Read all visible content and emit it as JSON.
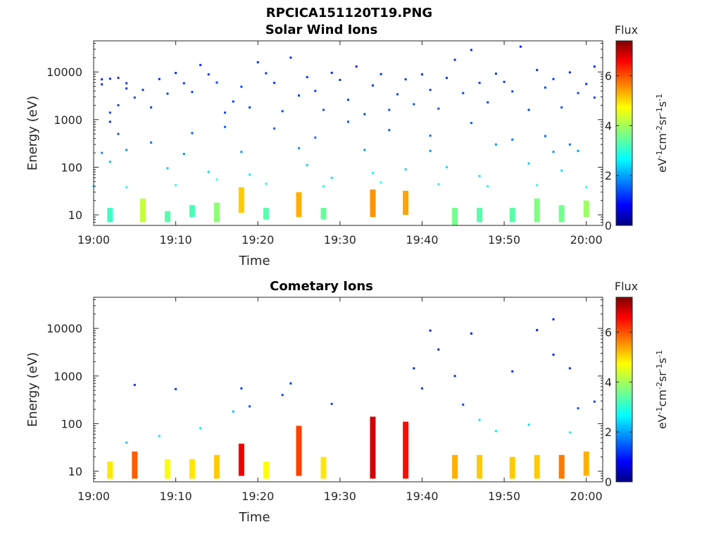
{
  "figure_title": "RPCICA151120T19.PNG",
  "chart_data": [
    {
      "type": "heatmap",
      "title": "Solar Wind Ions",
      "xlabel": "Time",
      "ylabel": "Energy (eV)",
      "y_scale": "log",
      "x_range": [
        "19:00",
        "20:02"
      ],
      "y_range": [
        6,
        45000
      ],
      "x_ticks": [
        "19:00",
        "19:10",
        "19:20",
        "19:30",
        "19:40",
        "19:50",
        "20:00"
      ],
      "y_ticks": [
        "10",
        "100",
        "1000",
        "10000"
      ],
      "colorbar": {
        "label": "Flux",
        "unit": "eV-1cm-2sr-1s-1",
        "range": [
          0,
          7.4
        ],
        "ticks": [
          "0",
          "2",
          "4",
          "6"
        ],
        "colormap": "jet"
      },
      "grid": false,
      "points": [
        {
          "t": "19:01",
          "e": 7000,
          "v": 1.2
        },
        {
          "t": "19:01",
          "e": 5500,
          "v": 1.3
        },
        {
          "t": "19:02",
          "e": 7200,
          "v": 1.2
        },
        {
          "t": "19:02",
          "e": 1400,
          "v": 1.4
        },
        {
          "t": "19:02",
          "e": 900,
          "v": 1.3
        },
        {
          "t": "19:03",
          "e": 7500,
          "v": 1.2
        },
        {
          "t": "19:03",
          "e": 2000,
          "v": 1.4
        },
        {
          "t": "19:04",
          "e": 5800,
          "v": 1.3
        },
        {
          "t": "19:04",
          "e": 4500,
          "v": 1.4
        },
        {
          "t": "19:05",
          "e": 2900,
          "v": 1.5
        },
        {
          "t": "19:06",
          "e": 4200,
          "v": 1.3
        },
        {
          "t": "19:07",
          "e": 1800,
          "v": 1.4
        },
        {
          "t": "19:08",
          "e": 7100,
          "v": 1.2
        },
        {
          "t": "19:09",
          "e": 3500,
          "v": 1.4
        },
        {
          "t": "19:10",
          "e": 9500,
          "v": 1.2
        },
        {
          "t": "19:11",
          "e": 5800,
          "v": 1.3
        },
        {
          "t": "19:12",
          "e": 3800,
          "v": 1.4
        },
        {
          "t": "19:13",
          "e": 14000,
          "v": 1.2
        },
        {
          "t": "19:14",
          "e": 8900,
          "v": 1.3
        },
        {
          "t": "19:15",
          "e": 6000,
          "v": 1.4
        },
        {
          "t": "19:16",
          "e": 1400,
          "v": 1.4
        },
        {
          "t": "19:17",
          "e": 2400,
          "v": 1.3
        },
        {
          "t": "19:18",
          "e": 4900,
          "v": 1.4
        },
        {
          "t": "19:19",
          "e": 1800,
          "v": 1.4
        },
        {
          "t": "19:20",
          "e": 16000,
          "v": 1.2
        },
        {
          "t": "19:21",
          "e": 9400,
          "v": 1.3
        },
        {
          "t": "19:22",
          "e": 5900,
          "v": 1.3
        },
        {
          "t": "19:23",
          "e": 1500,
          "v": 1.4
        },
        {
          "t": "19:24",
          "e": 20000,
          "v": 1.2
        },
        {
          "t": "19:25",
          "e": 3200,
          "v": 1.3
        },
        {
          "t": "19:26",
          "e": 7800,
          "v": 1.3
        },
        {
          "t": "19:27",
          "e": 4000,
          "v": 1.4
        },
        {
          "t": "19:28",
          "e": 1600,
          "v": 1.5
        },
        {
          "t": "19:29",
          "e": 9600,
          "v": 1.2
        },
        {
          "t": "19:30",
          "e": 6800,
          "v": 1.3
        },
        {
          "t": "19:31",
          "e": 2600,
          "v": 1.4
        },
        {
          "t": "19:32",
          "e": 13000,
          "v": 1.2
        },
        {
          "t": "19:33",
          "e": 1300,
          "v": 1.4
        },
        {
          "t": "19:34",
          "e": 5200,
          "v": 1.3
        },
        {
          "t": "19:35",
          "e": 9000,
          "v": 1.3
        },
        {
          "t": "19:36",
          "e": 1600,
          "v": 1.5
        },
        {
          "t": "19:37",
          "e": 3400,
          "v": 1.4
        },
        {
          "t": "19:38",
          "e": 7000,
          "v": 1.3
        },
        {
          "t": "19:39",
          "e": 2100,
          "v": 1.5
        },
        {
          "t": "19:40",
          "e": 8900,
          "v": 1.3
        },
        {
          "t": "19:41",
          "e": 4200,
          "v": 1.4
        },
        {
          "t": "19:42",
          "e": 1700,
          "v": 1.5
        },
        {
          "t": "19:43",
          "e": 7500,
          "v": 1.3
        },
        {
          "t": "19:44",
          "e": 18000,
          "v": 1.2
        },
        {
          "t": "19:45",
          "e": 3600,
          "v": 1.4
        },
        {
          "t": "19:46",
          "e": 29000,
          "v": 1.2
        },
        {
          "t": "19:47",
          "e": 5900,
          "v": 1.3
        },
        {
          "t": "19:48",
          "e": 2300,
          "v": 1.4
        },
        {
          "t": "19:49",
          "e": 9200,
          "v": 1.3
        },
        {
          "t": "19:50",
          "e": 6200,
          "v": 1.3
        },
        {
          "t": "19:51",
          "e": 3900,
          "v": 1.4
        },
        {
          "t": "19:52",
          "e": 34000,
          "v": 1.1
        },
        {
          "t": "19:53",
          "e": 1600,
          "v": 1.4
        },
        {
          "t": "19:54",
          "e": 11000,
          "v": 1.2
        },
        {
          "t": "19:55",
          "e": 4700,
          "v": 1.4
        },
        {
          "t": "19:56",
          "e": 7100,
          "v": 1.3
        },
        {
          "t": "19:57",
          "e": 1800,
          "v": 1.5
        },
        {
          "t": "19:58",
          "e": 9800,
          "v": 1.2
        },
        {
          "t": "19:59",
          "e": 3600,
          "v": 1.4
        },
        {
          "t": "20:00",
          "e": 5600,
          "v": 1.3
        },
        {
          "t": "20:01",
          "e": 13000,
          "v": 1.2
        },
        {
          "t": "20:01",
          "e": 2900,
          "v": 1.4
        },
        {
          "t": "19:03",
          "e": 500,
          "v": 1.6
        },
        {
          "t": "19:07",
          "e": 330,
          "v": 1.7
        },
        {
          "t": "19:12",
          "e": 520,
          "v": 1.6
        },
        {
          "t": "19:16",
          "e": 700,
          "v": 1.6
        },
        {
          "t": "19:22",
          "e": 650,
          "v": 1.6
        },
        {
          "t": "19:27",
          "e": 420,
          "v": 1.7
        },
        {
          "t": "19:31",
          "e": 900,
          "v": 1.5
        },
        {
          "t": "19:36",
          "e": 600,
          "v": 1.6
        },
        {
          "t": "19:41",
          "e": 460,
          "v": 1.7
        },
        {
          "t": "19:46",
          "e": 850,
          "v": 1.6
        },
        {
          "t": "19:51",
          "e": 380,
          "v": 1.7
        },
        {
          "t": "19:55",
          "e": 450,
          "v": 1.7
        },
        {
          "t": "19:58",
          "e": 300,
          "v": 1.7
        },
        {
          "t": "19:01",
          "e": 200,
          "v": 2.0
        },
        {
          "t": "19:04",
          "e": 230,
          "v": 2.0
        },
        {
          "t": "19:11",
          "e": 190,
          "v": 2.0
        },
        {
          "t": "19:18",
          "e": 210,
          "v": 2.0
        },
        {
          "t": "19:25",
          "e": 250,
          "v": 2.0
        },
        {
          "t": "19:33",
          "e": 230,
          "v": 2.0
        },
        {
          "t": "19:41",
          "e": 220,
          "v": 2.0
        },
        {
          "t": "19:49",
          "e": 300,
          "v": 2.0
        },
        {
          "t": "19:56",
          "e": 210,
          "v": 2.0
        },
        {
          "t": "19:59",
          "e": 220,
          "v": 2.0
        },
        {
          "t": "19:02",
          "e": 130,
          "v": 2.3
        },
        {
          "t": "19:09",
          "e": 95,
          "v": 2.4
        },
        {
          "t": "19:14",
          "e": 80,
          "v": 2.5
        },
        {
          "t": "19:19",
          "e": 70,
          "v": 2.6
        },
        {
          "t": "19:26",
          "e": 110,
          "v": 2.4
        },
        {
          "t": "19:29",
          "e": 60,
          "v": 2.6
        },
        {
          "t": "19:34",
          "e": 75,
          "v": 2.7
        },
        {
          "t": "19:38",
          "e": 90,
          "v": 2.5
        },
        {
          "t": "19:43",
          "e": 100,
          "v": 2.5
        },
        {
          "t": "19:47",
          "e": 65,
          "v": 2.6
        },
        {
          "t": "19:53",
          "e": 120,
          "v": 2.4
        },
        {
          "t": "19:57",
          "e": 85,
          "v": 2.5
        },
        {
          "t": "19:00",
          "e": 40,
          "v": 2.8
        },
        {
          "t": "19:04",
          "e": 38,
          "v": 2.9
        },
        {
          "t": "19:10",
          "e": 42,
          "v": 3.0
        },
        {
          "t": "19:15",
          "e": 55,
          "v": 3.2
        },
        {
          "t": "19:21",
          "e": 45,
          "v": 3.0
        },
        {
          "t": "19:28",
          "e": 40,
          "v": 2.9
        },
        {
          "t": "19:35",
          "e": 48,
          "v": 3.1
        },
        {
          "t": "19:42",
          "e": 44,
          "v": 3.0
        },
        {
          "t": "19:48",
          "e": 40,
          "v": 2.9
        },
        {
          "t": "19:54",
          "e": 42,
          "v": 3.0
        },
        {
          "t": "20:00",
          "e": 38,
          "v": 3.0
        }
      ],
      "bands": [
        {
          "t": "19:02",
          "ranges": [
            [
              7,
              14
            ]
          ],
          "v": 3.2
        },
        {
          "t": "19:06",
          "ranges": [
            [
              7,
              22
            ]
          ],
          "v": 4.2
        },
        {
          "t": "19:09",
          "ranges": [
            [
              7,
              12
            ]
          ],
          "v": 3.4
        },
        {
          "t": "19:12",
          "ranges": [
            [
              9,
              16
            ]
          ],
          "v": 3.3
        },
        {
          "t": "19:15",
          "ranges": [
            [
              7,
              18
            ]
          ],
          "v": 3.8
        },
        {
          "t": "19:18",
          "ranges": [
            [
              11,
              38
            ]
          ],
          "v": 5.0
        },
        {
          "t": "19:21",
          "ranges": [
            [
              8,
              14
            ]
          ],
          "v": 3.4
        },
        {
          "t": "19:25",
          "ranges": [
            [
              9,
              30
            ]
          ],
          "v": 5.2
        },
        {
          "t": "19:28",
          "ranges": [
            [
              8,
              14
            ]
          ],
          "v": 3.5
        },
        {
          "t": "19:34",
          "ranges": [
            [
              9,
              34
            ]
          ],
          "v": 5.4
        },
        {
          "t": "19:38",
          "ranges": [
            [
              10,
              32
            ]
          ],
          "v": 5.3
        },
        {
          "t": "19:44",
          "ranges": [
            [
              6,
              14
            ]
          ],
          "v": 3.6
        },
        {
          "t": "19:47",
          "ranges": [
            [
              7,
              14
            ]
          ],
          "v": 3.4
        },
        {
          "t": "19:51",
          "ranges": [
            [
              7,
              14
            ]
          ],
          "v": 3.4
        },
        {
          "t": "19:54",
          "ranges": [
            [
              7,
              22
            ]
          ],
          "v": 3.7
        },
        {
          "t": "19:57",
          "ranges": [
            [
              7,
              16
            ]
          ],
          "v": 3.6
        },
        {
          "t": "20:00",
          "ranges": [
            [
              9,
              20
            ]
          ],
          "v": 3.9
        }
      ]
    },
    {
      "type": "heatmap",
      "title": "Cometary Ions",
      "xlabel": "Time",
      "ylabel": "Energy (eV)",
      "y_scale": "log",
      "x_range": [
        "19:00",
        "20:02"
      ],
      "y_range": [
        6,
        45000
      ],
      "x_ticks": [
        "19:00",
        "19:10",
        "19:20",
        "19:30",
        "19:40",
        "19:50",
        "20:00"
      ],
      "y_ticks": [
        "10",
        "100",
        "1000",
        "10000"
      ],
      "colorbar": {
        "label": "Flux",
        "unit": "eV-1cm-2sr-1s-1",
        "range": [
          0,
          7.4
        ],
        "ticks": [
          "0",
          "2",
          "4",
          "6"
        ],
        "colormap": "jet"
      },
      "grid": false,
      "points": [
        {
          "t": "19:05",
          "e": 650,
          "v": 1.3
        },
        {
          "t": "19:10",
          "e": 530,
          "v": 1.3
        },
        {
          "t": "19:18",
          "e": 550,
          "v": 1.3
        },
        {
          "t": "19:19",
          "e": 230,
          "v": 1.5
        },
        {
          "t": "19:23",
          "e": 400,
          "v": 1.4
        },
        {
          "t": "19:24",
          "e": 700,
          "v": 1.3
        },
        {
          "t": "19:29",
          "e": 260,
          "v": 1.4
        },
        {
          "t": "19:39",
          "e": 1450,
          "v": 1.2
        },
        {
          "t": "19:40",
          "e": 550,
          "v": 1.3
        },
        {
          "t": "19:41",
          "e": 9000,
          "v": 1.1
        },
        {
          "t": "19:42",
          "e": 3600,
          "v": 1.2
        },
        {
          "t": "19:44",
          "e": 1000,
          "v": 1.2
        },
        {
          "t": "19:45",
          "e": 250,
          "v": 1.4
        },
        {
          "t": "19:46",
          "e": 7800,
          "v": 1.1
        },
        {
          "t": "19:51",
          "e": 1250,
          "v": 1.2
        },
        {
          "t": "19:54",
          "e": 9200,
          "v": 1.1
        },
        {
          "t": "19:56",
          "e": 2800,
          "v": 1.2
        },
        {
          "t": "19:56",
          "e": 15500,
          "v": 1.1
        },
        {
          "t": "19:58",
          "e": 1450,
          "v": 1.2
        },
        {
          "t": "19:59",
          "e": 210,
          "v": 1.5
        },
        {
          "t": "20:01",
          "e": 290,
          "v": 1.4
        },
        {
          "t": "19:04",
          "e": 40,
          "v": 2.4
        },
        {
          "t": "19:08",
          "e": 55,
          "v": 2.6
        },
        {
          "t": "19:13",
          "e": 80,
          "v": 2.6
        },
        {
          "t": "19:17",
          "e": 180,
          "v": 2.3
        },
        {
          "t": "19:47",
          "e": 120,
          "v": 2.6
        },
        {
          "t": "19:49",
          "e": 70,
          "v": 2.7
        },
        {
          "t": "19:53",
          "e": 95,
          "v": 2.5
        },
        {
          "t": "19:58",
          "e": 65,
          "v": 2.7
        }
      ],
      "bands": [
        {
          "t": "19:02",
          "ranges": [
            [
              7,
              16
            ]
          ],
          "v": 4.8
        },
        {
          "t": "19:05",
          "ranges": [
            [
              7,
              26
            ]
          ],
          "v": 5.8
        },
        {
          "t": "19:09",
          "ranges": [
            [
              7,
              18
            ]
          ],
          "v": 4.6
        },
        {
          "t": "19:12",
          "ranges": [
            [
              7,
              18
            ]
          ],
          "v": 4.8
        },
        {
          "t": "19:15",
          "ranges": [
            [
              7,
              22
            ]
          ],
          "v": 5.0
        },
        {
          "t": "19:18",
          "ranges": [
            [
              8,
              38
            ]
          ],
          "v": 6.6
        },
        {
          "t": "19:21",
          "ranges": [
            [
              7,
              16
            ]
          ],
          "v": 4.6
        },
        {
          "t": "19:25",
          "ranges": [
            [
              8,
              90
            ]
          ],
          "v": 6.0
        },
        {
          "t": "19:28",
          "ranges": [
            [
              7,
              20
            ]
          ],
          "v": 4.8
        },
        {
          "t": "19:34",
          "ranges": [
            [
              7,
              140
            ]
          ],
          "v": 6.8
        },
        {
          "t": "19:38",
          "ranges": [
            [
              7,
              110
            ]
          ],
          "v": 6.4
        },
        {
          "t": "19:44",
          "ranges": [
            [
              7,
              22
            ]
          ],
          "v": 5.2
        },
        {
          "t": "19:47",
          "ranges": [
            [
              7,
              22
            ]
          ],
          "v": 5.0
        },
        {
          "t": "19:51",
          "ranges": [
            [
              7,
              20
            ]
          ],
          "v": 5.0
        },
        {
          "t": "19:54",
          "ranges": [
            [
              7,
              22
            ]
          ],
          "v": 5.0
        },
        {
          "t": "19:57",
          "ranges": [
            [
              7,
              22
            ]
          ],
          "v": 5.6
        },
        {
          "t": "20:00",
          "ranges": [
            [
              8,
              26
            ]
          ],
          "v": 5.2
        }
      ]
    }
  ]
}
